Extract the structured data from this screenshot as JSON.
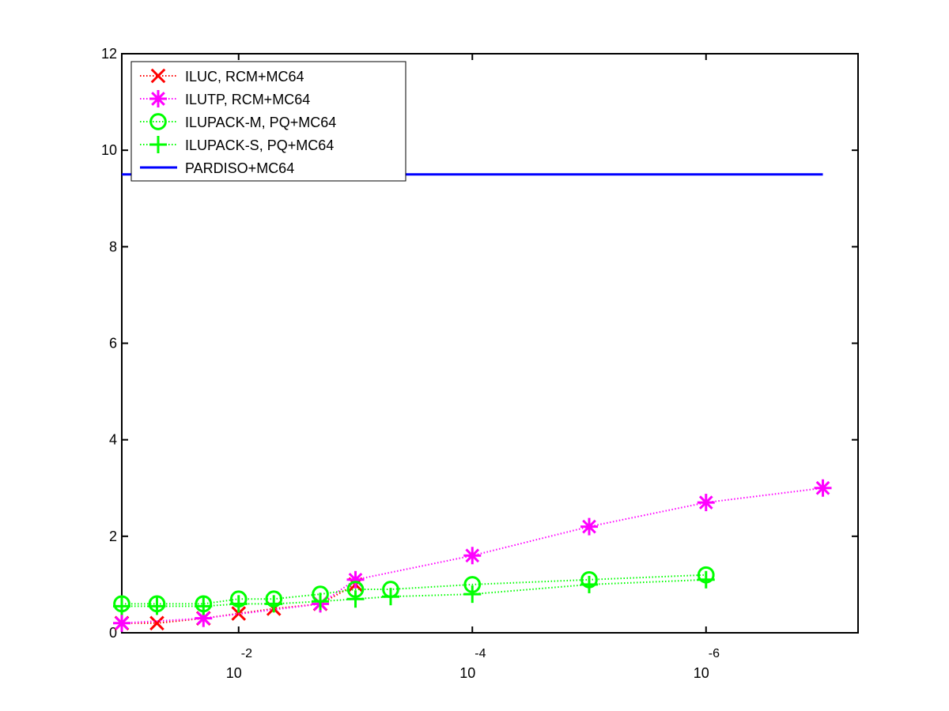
{
  "chart_data": {
    "type": "line",
    "x_scale": "log-reversed",
    "xlim": [
      0.1,
      5e-08
    ],
    "ylim": [
      0,
      12
    ],
    "x_ticks": [
      {
        "value": 0.01,
        "label": "10",
        "exponent": "-2"
      },
      {
        "value": 0.0001,
        "label": "10",
        "exponent": "-4"
      },
      {
        "value": 1e-06,
        "label": "10",
        "exponent": "-6"
      }
    ],
    "y_ticks": [
      {
        "value": 0,
        "label": "0"
      },
      {
        "value": 2,
        "label": "2"
      },
      {
        "value": 4,
        "label": "4"
      },
      {
        "value": 6,
        "label": "6"
      },
      {
        "value": 8,
        "label": "8"
      },
      {
        "value": 10,
        "label": "10"
      },
      {
        "value": 12,
        "label": "12"
      }
    ],
    "grid": false,
    "legend_position": "top-left",
    "series": [
      {
        "name": "ILUC, RCM+MC64",
        "color": "#ff0000",
        "marker": "x",
        "linestyle": "dotted",
        "points": [
          [
            0.1,
            0.2
          ],
          [
            0.05,
            0.2
          ],
          [
            0.02,
            0.3
          ],
          [
            0.01,
            0.4
          ],
          [
            0.005,
            0.5
          ],
          [
            0.002,
            0.6
          ],
          [
            0.001,
            1.0
          ]
        ]
      },
      {
        "name": "ILUTP, RCM+MC64",
        "color": "#ff00ff",
        "marker": "asterisk",
        "linestyle": "dotted",
        "points": [
          [
            0.1,
            0.2
          ],
          [
            0.02,
            0.3
          ],
          [
            0.002,
            0.6
          ],
          [
            0.001,
            1.1
          ],
          [
            0.0001,
            1.6
          ],
          [
            1e-05,
            2.2
          ],
          [
            1e-06,
            2.7
          ],
          [
            1e-07,
            3.0
          ]
        ]
      },
      {
        "name": "ILUPACK-M, PQ+MC64",
        "color": "#00ff00",
        "marker": "circle",
        "linestyle": "dotted",
        "points": [
          [
            0.1,
            0.6
          ],
          [
            0.05,
            0.6
          ],
          [
            0.02,
            0.6
          ],
          [
            0.01,
            0.7
          ],
          [
            0.005,
            0.7
          ],
          [
            0.002,
            0.8
          ],
          [
            0.001,
            0.9
          ],
          [
            0.0005,
            0.9
          ],
          [
            0.0001,
            1.0
          ],
          [
            1e-05,
            1.1
          ],
          [
            1e-06,
            1.2
          ]
        ]
      },
      {
        "name": "ILUPACK-S, PQ+MC64",
        "color": "#00ff00",
        "marker": "plus",
        "linestyle": "dotted",
        "points": [
          [
            0.1,
            0.55
          ],
          [
            0.05,
            0.55
          ],
          [
            0.02,
            0.55
          ],
          [
            0.01,
            0.6
          ],
          [
            0.005,
            0.6
          ],
          [
            0.002,
            0.65
          ],
          [
            0.001,
            0.7
          ],
          [
            0.0005,
            0.75
          ],
          [
            0.0001,
            0.8
          ],
          [
            1e-05,
            1.0
          ],
          [
            1e-06,
            1.1
          ]
        ]
      },
      {
        "name": "PARDISO+MC64",
        "color": "#0000ff",
        "marker": "none",
        "linestyle": "solid",
        "points": [
          [
            0.1,
            9.5
          ],
          [
            1e-07,
            9.5
          ]
        ]
      }
    ]
  }
}
